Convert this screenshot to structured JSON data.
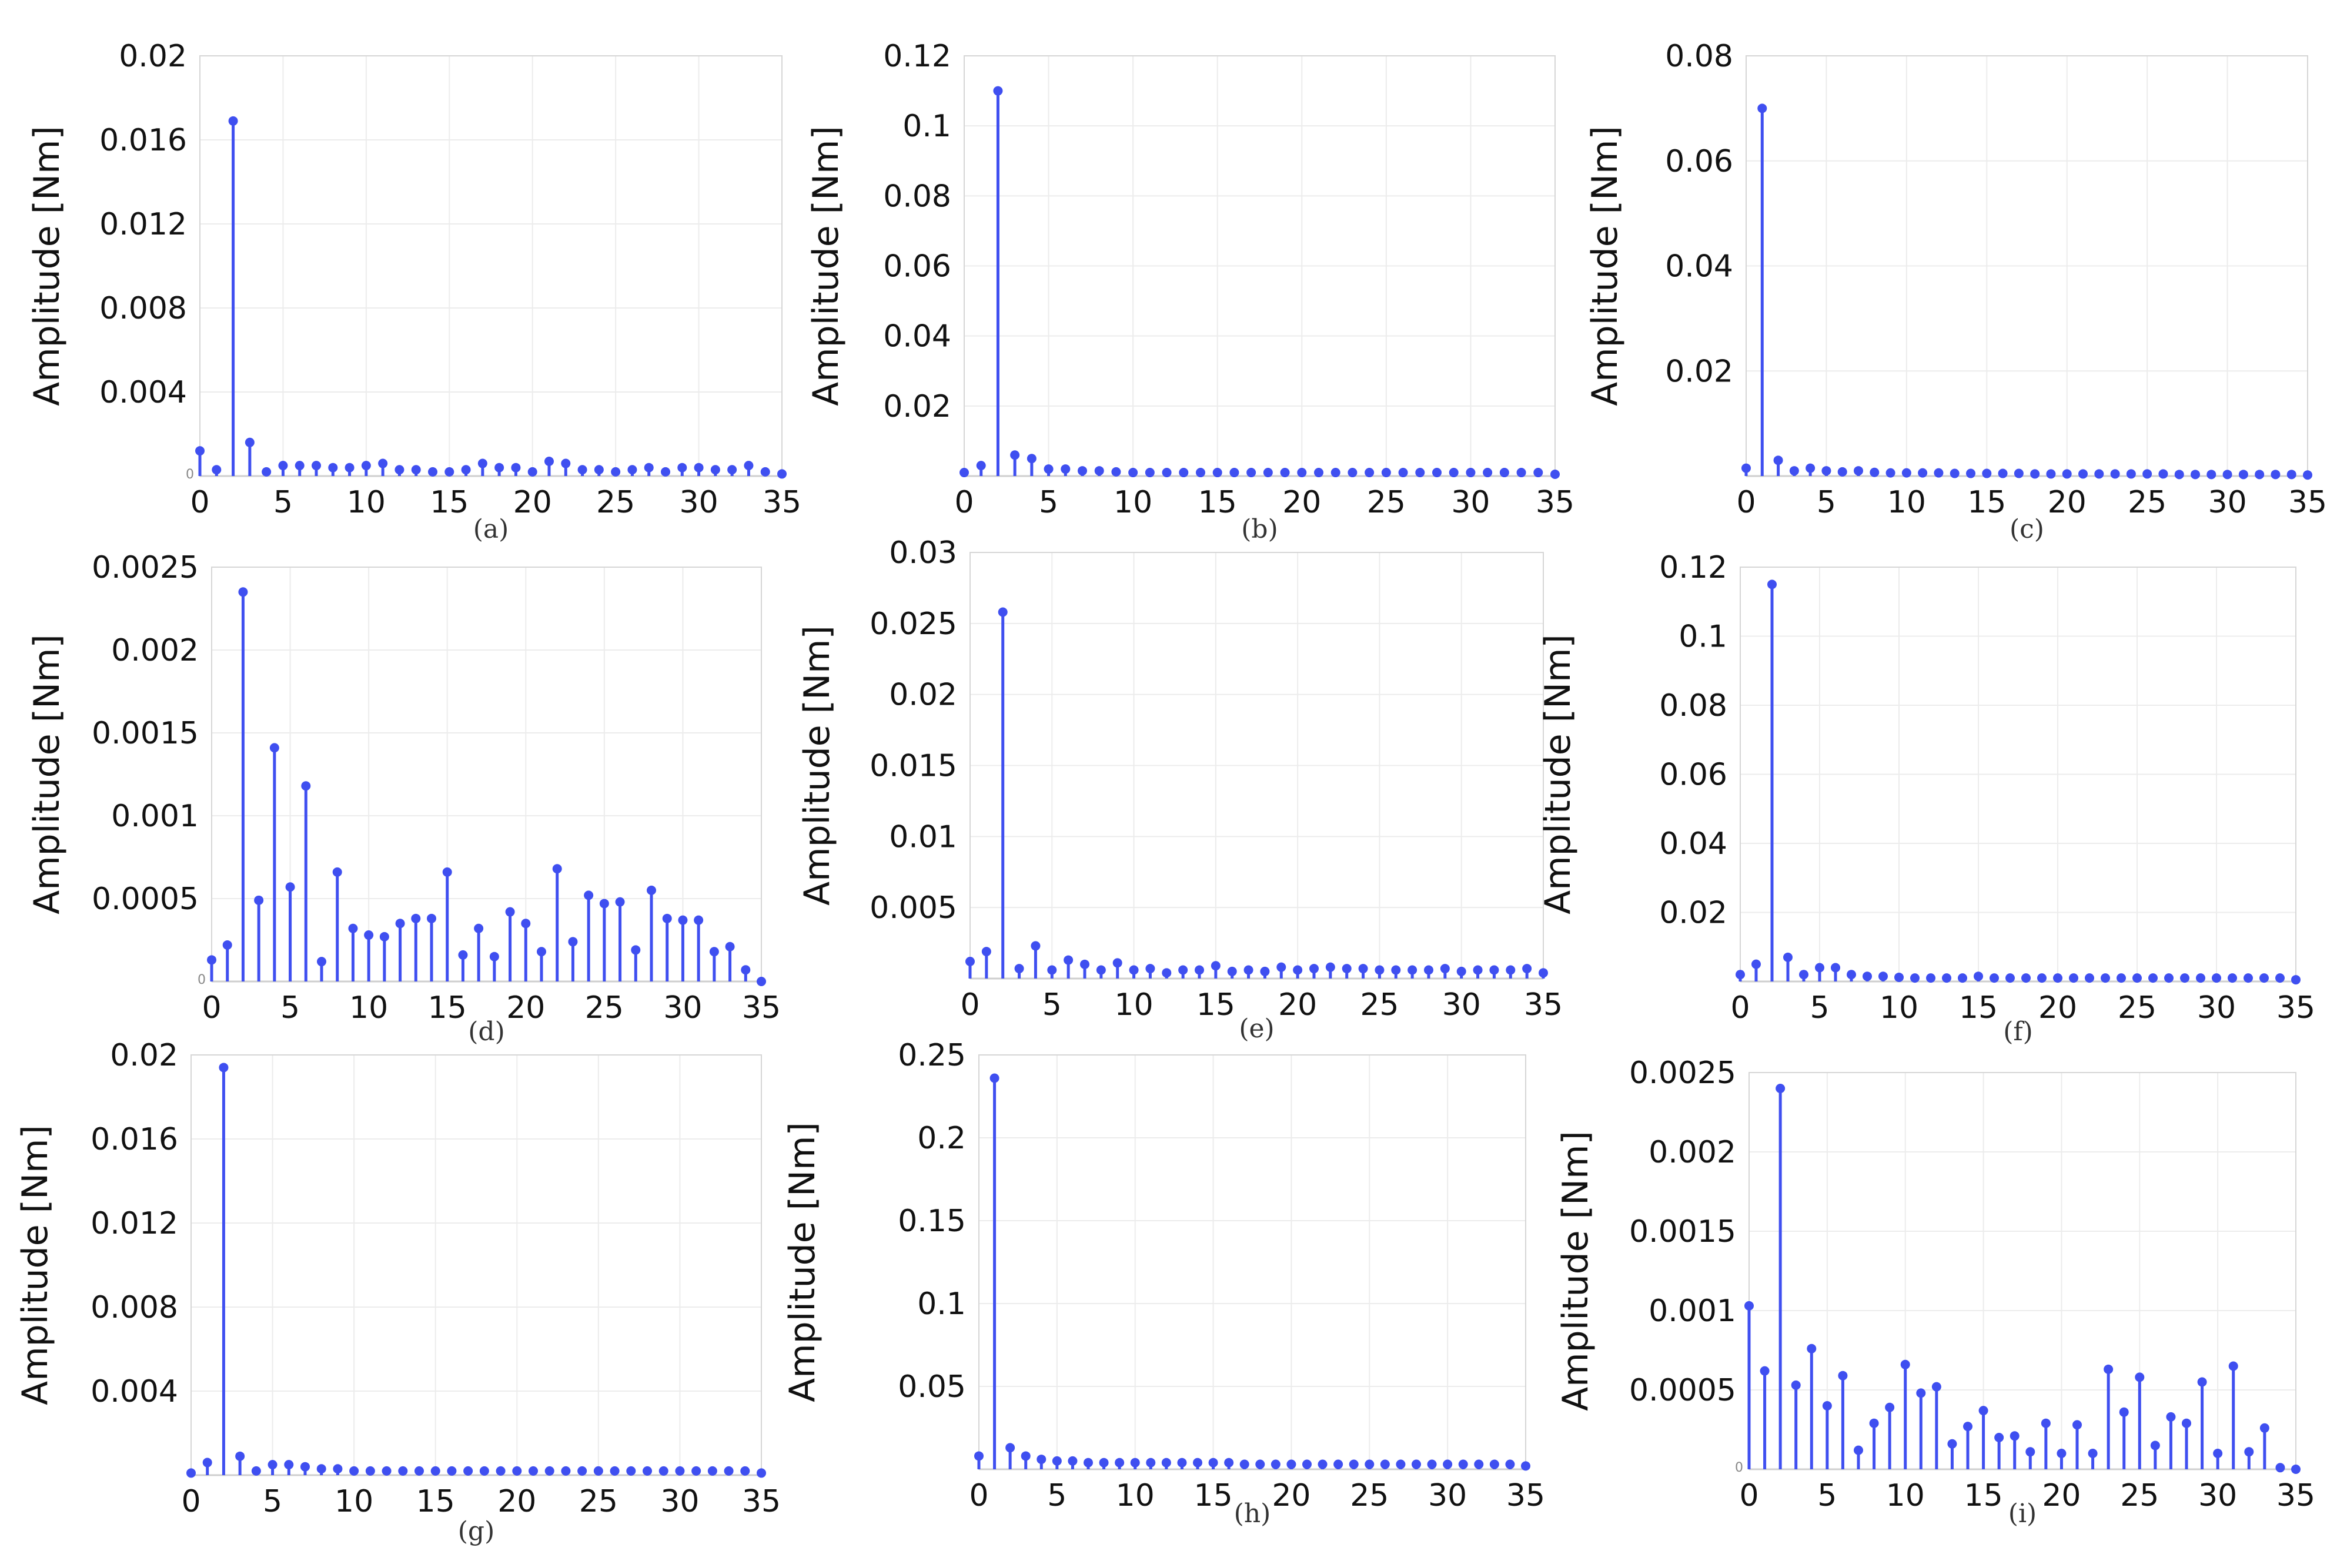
{
  "colors": {
    "stem": "#3f4ff0",
    "grid": "#ececec",
    "frame": "#d6d6d6",
    "text": "#111111"
  },
  "chart_data": [
    {
      "type": "stem",
      "caption": "(a)",
      "ylabel": "Amplitude [Nm]",
      "xlim": [
        0,
        35
      ],
      "ylim": [
        0,
        0.02
      ],
      "xticks": [
        "0",
        "5",
        "10",
        "15",
        "20",
        "25",
        "30",
        "35"
      ],
      "yticks": [
        {
          "value": 0.004,
          "label": "0.004"
        },
        {
          "value": 0.008,
          "label": "0.008"
        },
        {
          "value": 0.012,
          "label": "0.012"
        },
        {
          "value": 0.016,
          "label": "0.016"
        },
        {
          "value": 0.02,
          "label": "0.02"
        }
      ],
      "zero_label": "0",
      "x": [
        0,
        1,
        2,
        3,
        4,
        5,
        6,
        7,
        8,
        9,
        10,
        11,
        12,
        13,
        14,
        15,
        16,
        17,
        18,
        19,
        20,
        21,
        22,
        23,
        24,
        25,
        26,
        27,
        28,
        29,
        30,
        31,
        32,
        33,
        34,
        35
      ],
      "values": [
        0.0012,
        0.0003,
        0.0169,
        0.0016,
        0.0002,
        0.0005,
        0.0005,
        0.0005,
        0.0004,
        0.0004,
        0.0005,
        0.0006,
        0.0003,
        0.0003,
        0.0002,
        0.0002,
        0.0003,
        0.0006,
        0.0004,
        0.0004,
        0.0002,
        0.0007,
        0.0006,
        0.0003,
        0.0003,
        0.0002,
        0.0003,
        0.0004,
        0.0002,
        0.0004,
        0.0004,
        0.0003,
        0.0003,
        0.0005,
        0.0002,
        0.0001
      ]
    },
    {
      "type": "stem",
      "caption": "(b)",
      "ylabel": "Amplitude [Nm]",
      "xlim": [
        0,
        35
      ],
      "ylim": [
        0,
        0.12
      ],
      "xticks": [
        "0",
        "5",
        "10",
        "15",
        "20",
        "25",
        "30",
        "35"
      ],
      "yticks": [
        {
          "value": 0.02,
          "label": "0.02"
        },
        {
          "value": 0.04,
          "label": "0.04"
        },
        {
          "value": 0.06,
          "label": "0.06"
        },
        {
          "value": 0.08,
          "label": "0.08"
        },
        {
          "value": 0.1,
          "label": "0.1"
        },
        {
          "value": 0.12,
          "label": "0.12"
        }
      ],
      "zero_label": "",
      "x": [
        0,
        1,
        2,
        3,
        4,
        5,
        6,
        7,
        8,
        9,
        10,
        11,
        12,
        13,
        14,
        15,
        16,
        17,
        18,
        19,
        20,
        21,
        22,
        23,
        24,
        25,
        26,
        27,
        28,
        29,
        30,
        31,
        32,
        33,
        34,
        35
      ],
      "values": [
        0.001,
        0.003,
        0.11,
        0.006,
        0.005,
        0.002,
        0.002,
        0.0015,
        0.0015,
        0.0012,
        0.001,
        0.001,
        0.001,
        0.001,
        0.001,
        0.001,
        0.001,
        0.001,
        0.001,
        0.001,
        0.001,
        0.001,
        0.001,
        0.001,
        0.001,
        0.001,
        0.001,
        0.001,
        0.001,
        0.001,
        0.001,
        0.001,
        0.001,
        0.001,
        0.001,
        0.0005
      ]
    },
    {
      "type": "stem",
      "caption": "(c)",
      "ylabel": "Amplitude [Nm]",
      "xlim": [
        0,
        35
      ],
      "ylim": [
        0,
        0.08
      ],
      "xticks": [
        "0",
        "5",
        "10",
        "15",
        "20",
        "25",
        "30",
        "35"
      ],
      "yticks": [
        {
          "value": 0.02,
          "label": "0.02"
        },
        {
          "value": 0.04,
          "label": "0.04"
        },
        {
          "value": 0.06,
          "label": "0.06"
        },
        {
          "value": 0.08,
          "label": "0.08"
        }
      ],
      "zero_label": "",
      "x": [
        0,
        1,
        2,
        3,
        4,
        5,
        6,
        7,
        8,
        9,
        10,
        11,
        12,
        13,
        14,
        15,
        16,
        17,
        18,
        19,
        20,
        21,
        22,
        23,
        24,
        25,
        26,
        27,
        28,
        29,
        30,
        31,
        32,
        33,
        34,
        35
      ],
      "values": [
        0.0015,
        0.07,
        0.003,
        0.001,
        0.0015,
        0.001,
        0.0008,
        0.001,
        0.0007,
        0.0006,
        0.0006,
        0.0006,
        0.0006,
        0.0005,
        0.0005,
        0.0005,
        0.0005,
        0.0005,
        0.0004,
        0.0004,
        0.0004,
        0.0004,
        0.0004,
        0.0004,
        0.0004,
        0.0004,
        0.0004,
        0.0003,
        0.0003,
        0.0003,
        0.0003,
        0.0003,
        0.0003,
        0.0003,
        0.0003,
        0.0002
      ]
    },
    {
      "type": "stem",
      "caption": "(d)",
      "ylabel": "Amplitude [Nm]",
      "xlim": [
        0,
        35
      ],
      "ylim": [
        0,
        0.0025
      ],
      "xticks": [
        "0",
        "5",
        "10",
        "15",
        "20",
        "25",
        "30",
        "35"
      ],
      "yticks": [
        {
          "value": 0.0005,
          "label": "0.0005"
        },
        {
          "value": 0.001,
          "label": "0.001"
        },
        {
          "value": 0.0015,
          "label": "0.0015"
        },
        {
          "value": 0.002,
          "label": "0.002"
        },
        {
          "value": 0.0025,
          "label": "0.0025"
        }
      ],
      "zero_label": "0",
      "x": [
        0,
        1,
        2,
        3,
        4,
        5,
        6,
        7,
        8,
        9,
        10,
        11,
        12,
        13,
        14,
        15,
        16,
        17,
        18,
        19,
        20,
        21,
        22,
        23,
        24,
        25,
        26,
        27,
        28,
        29,
        30,
        31,
        32,
        33,
        34,
        35
      ],
      "values": [
        0.00013,
        0.00022,
        0.00235,
        0.00049,
        0.00141,
        0.00057,
        0.00118,
        0.00012,
        0.00066,
        0.00032,
        0.00028,
        0.00027,
        0.00035,
        0.00038,
        0.00038,
        0.00066,
        0.00016,
        0.00032,
        0.00015,
        0.00042,
        0.00035,
        0.00018,
        0.00068,
        0.00024,
        0.00052,
        0.00047,
        0.00048,
        0.00019,
        0.00055,
        0.00038,
        0.00037,
        0.00037,
        0.00018,
        0.00021,
        7e-05,
        0.0
      ]
    },
    {
      "type": "stem",
      "caption": "(e)",
      "ylabel": "Amplitude [Nm]",
      "xlim": [
        0,
        35
      ],
      "ylim": [
        0,
        0.03
      ],
      "xticks": [
        "0",
        "5",
        "10",
        "15",
        "20",
        "25",
        "30",
        "35"
      ],
      "yticks": [
        {
          "value": 0.005,
          "label": "0.005"
        },
        {
          "value": 0.01,
          "label": "0.01"
        },
        {
          "value": 0.015,
          "label": "0.015"
        },
        {
          "value": 0.02,
          "label": "0.02"
        },
        {
          "value": 0.025,
          "label": "0.025"
        },
        {
          "value": 0.03,
          "label": "0.03"
        }
      ],
      "zero_label": "",
      "x": [
        0,
        1,
        2,
        3,
        4,
        5,
        6,
        7,
        8,
        9,
        10,
        11,
        12,
        13,
        14,
        15,
        16,
        17,
        18,
        19,
        20,
        21,
        22,
        23,
        24,
        25,
        26,
        27,
        28,
        29,
        30,
        31,
        32,
        33,
        34,
        35
      ],
      "values": [
        0.0012,
        0.0019,
        0.0258,
        0.0007,
        0.0023,
        0.0006,
        0.0013,
        0.001,
        0.0006,
        0.0011,
        0.0006,
        0.0007,
        0.0004,
        0.0006,
        0.0006,
        0.0009,
        0.0005,
        0.0006,
        0.0005,
        0.0008,
        0.0006,
        0.0007,
        0.0008,
        0.0007,
        0.0007,
        0.0006,
        0.0006,
        0.0006,
        0.0006,
        0.0007,
        0.0005,
        0.0006,
        0.0006,
        0.0006,
        0.0007,
        0.0004
      ]
    },
    {
      "type": "stem",
      "caption": "(f)",
      "ylabel": "Amplitude [Nm]",
      "xlim": [
        0,
        35
      ],
      "ylim": [
        0,
        0.12
      ],
      "xticks": [
        "0",
        "5",
        "10",
        "15",
        "20",
        "25",
        "30",
        "35"
      ],
      "yticks": [
        {
          "value": 0.02,
          "label": "0.02"
        },
        {
          "value": 0.04,
          "label": "0.04"
        },
        {
          "value": 0.06,
          "label": "0.06"
        },
        {
          "value": 0.08,
          "label": "0.08"
        },
        {
          "value": 0.1,
          "label": "0.1"
        },
        {
          "value": 0.12,
          "label": "0.12"
        }
      ],
      "zero_label": "",
      "x": [
        0,
        1,
        2,
        3,
        4,
        5,
        6,
        7,
        8,
        9,
        10,
        11,
        12,
        13,
        14,
        15,
        16,
        17,
        18,
        19,
        20,
        21,
        22,
        23,
        24,
        25,
        26,
        27,
        28,
        29,
        30,
        31,
        32,
        33,
        34,
        35
      ],
      "values": [
        0.002,
        0.005,
        0.115,
        0.007,
        0.002,
        0.004,
        0.004,
        0.002,
        0.0015,
        0.0015,
        0.0012,
        0.001,
        0.001,
        0.001,
        0.001,
        0.0015,
        0.001,
        0.001,
        0.001,
        0.001,
        0.001,
        0.001,
        0.001,
        0.001,
        0.001,
        0.001,
        0.001,
        0.001,
        0.001,
        0.001,
        0.001,
        0.001,
        0.001,
        0.001,
        0.001,
        0.0005
      ]
    },
    {
      "type": "stem",
      "caption": "(g)",
      "ylabel": "Amplitude [Nm]",
      "xlim": [
        0,
        35
      ],
      "ylim": [
        0,
        0.02
      ],
      "xticks": [
        "0",
        "5",
        "10",
        "15",
        "20",
        "25",
        "30",
        "35"
      ],
      "yticks": [
        {
          "value": 0.004,
          "label": "0.004"
        },
        {
          "value": 0.008,
          "label": "0.008"
        },
        {
          "value": 0.012,
          "label": "0.012"
        },
        {
          "value": 0.016,
          "label": "0.016"
        },
        {
          "value": 0.02,
          "label": "0.02"
        }
      ],
      "zero_label": "",
      "x": [
        0,
        1,
        2,
        3,
        4,
        5,
        6,
        7,
        8,
        9,
        10,
        11,
        12,
        13,
        14,
        15,
        16,
        17,
        18,
        19,
        20,
        21,
        22,
        23,
        24,
        25,
        26,
        27,
        28,
        29,
        30,
        31,
        32,
        33,
        34,
        35
      ],
      "values": [
        0.0001,
        0.0006,
        0.0194,
        0.0009,
        0.0002,
        0.0005,
        0.0005,
        0.0004,
        0.0003,
        0.0003,
        0.0002,
        0.0002,
        0.0002,
        0.0002,
        0.0002,
        0.0002,
        0.0002,
        0.0002,
        0.0002,
        0.0002,
        0.0002,
        0.0002,
        0.0002,
        0.0002,
        0.0002,
        0.0002,
        0.0002,
        0.0002,
        0.0002,
        0.0002,
        0.0002,
        0.0002,
        0.0002,
        0.0002,
        0.0002,
        0.0001
      ]
    },
    {
      "type": "stem",
      "caption": "(h)",
      "ylabel": "Amplitude [Nm]",
      "xlim": [
        0,
        35
      ],
      "ylim": [
        0,
        0.25
      ],
      "xticks": [
        "0",
        "5",
        "10",
        "15",
        "20",
        "25",
        "30",
        "35"
      ],
      "yticks": [
        {
          "value": 0.05,
          "label": "0.05"
        },
        {
          "value": 0.1,
          "label": "0.1"
        },
        {
          "value": 0.15,
          "label": "0.15"
        },
        {
          "value": 0.2,
          "label": "0.2"
        },
        {
          "value": 0.25,
          "label": "0.25"
        }
      ],
      "zero_label": "",
      "x": [
        0,
        1,
        2,
        3,
        4,
        5,
        6,
        7,
        8,
        9,
        10,
        11,
        12,
        13,
        14,
        15,
        16,
        17,
        18,
        19,
        20,
        21,
        22,
        23,
        24,
        25,
        26,
        27,
        28,
        29,
        30,
        31,
        32,
        33,
        34,
        35
      ],
      "values": [
        0.008,
        0.236,
        0.013,
        0.008,
        0.006,
        0.005,
        0.005,
        0.004,
        0.004,
        0.004,
        0.004,
        0.004,
        0.004,
        0.004,
        0.004,
        0.004,
        0.004,
        0.003,
        0.003,
        0.003,
        0.003,
        0.003,
        0.003,
        0.003,
        0.003,
        0.003,
        0.003,
        0.003,
        0.003,
        0.003,
        0.003,
        0.003,
        0.003,
        0.003,
        0.003,
        0.002
      ]
    },
    {
      "type": "stem",
      "caption": "(i)",
      "ylabel": "Amplitude [Nm]",
      "xlim": [
        0,
        35
      ],
      "ylim": [
        0,
        0.0025
      ],
      "xticks": [
        "0",
        "5",
        "10",
        "15",
        "20",
        "25",
        "30",
        "35"
      ],
      "yticks": [
        {
          "value": 0.0005,
          "label": "0.0005"
        },
        {
          "value": 0.001,
          "label": "0.001"
        },
        {
          "value": 0.0015,
          "label": "0.0015"
        },
        {
          "value": 0.002,
          "label": "0.002"
        },
        {
          "value": 0.0025,
          "label": "0.0025"
        }
      ],
      "zero_label": "0",
      "x": [
        0,
        1,
        2,
        3,
        4,
        5,
        6,
        7,
        8,
        9,
        10,
        11,
        12,
        13,
        14,
        15,
        16,
        17,
        18,
        19,
        20,
        21,
        22,
        23,
        24,
        25,
        26,
        27,
        28,
        29,
        30,
        31,
        32,
        33,
        34,
        35
      ],
      "values": [
        0.00103,
        0.00062,
        0.0024,
        0.00053,
        0.00076,
        0.0004,
        0.00059,
        0.00012,
        0.00029,
        0.00039,
        0.00066,
        0.00048,
        0.00052,
        0.00016,
        0.00027,
        0.00037,
        0.0002,
        0.00021,
        0.00011,
        0.00029,
        0.0001,
        0.00028,
        0.0001,
        0.00063,
        0.00036,
        0.00058,
        0.00015,
        0.00033,
        0.00029,
        0.00055,
        0.0001,
        0.00065,
        0.00011,
        0.00026,
        1e-05,
        0.0
      ]
    }
  ]
}
